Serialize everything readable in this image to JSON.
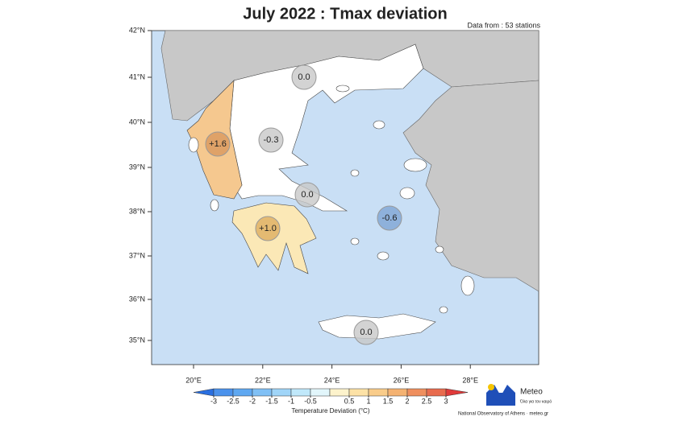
{
  "header": {
    "title": "July 2022 : Tmax deviation",
    "note": "Data from : 53 stations"
  },
  "map": {
    "lat_labels": [
      "42°N",
      "41°N",
      "40°N",
      "39°N",
      "38°N",
      "37°N",
      "36°N",
      "35°N"
    ],
    "lon_labels": [
      "20°E",
      "22°E",
      "24°E",
      "26°E",
      "28°E"
    ],
    "regions": [
      {
        "label": "0.0"
      },
      {
        "label": "-0.3"
      },
      {
        "label": "+1.6"
      },
      {
        "label": "0.0"
      },
      {
        "label": "-0.6"
      },
      {
        "label": "+1.0"
      },
      {
        "label": "0.0"
      }
    ]
  },
  "legend": {
    "ticks": [
      -3,
      -2.5,
      -2,
      -1.5,
      -1,
      -0.5,
      0.5,
      1,
      1.5,
      2,
      2.5,
      3
    ],
    "title": "Temperature Deviation (°C)"
  },
  "logo": {
    "name": "Meteo",
    "tagline": "Όλα για τον καιρό",
    "credit": "National Observatory of Athens · meteo.gr"
  }
}
